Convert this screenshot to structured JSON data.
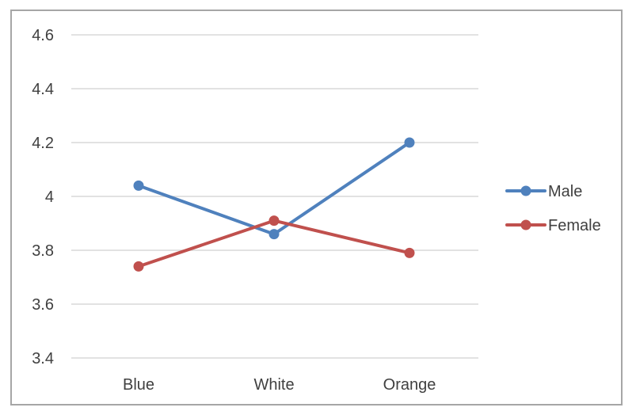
{
  "chart_data": {
    "type": "line",
    "title": "",
    "xlabel": "",
    "ylabel": "",
    "categories": [
      "Blue",
      "White",
      "Orange"
    ],
    "ylim": [
      3.4,
      4.6
    ],
    "yticks": [
      "3.4",
      "3.6",
      "3.8",
      "4",
      "4.2",
      "4.4",
      "4.6"
    ],
    "grid": true,
    "legend": "right",
    "series": [
      {
        "name": "Male",
        "values": [
          4.04,
          3.86,
          4.2
        ],
        "color": "#4f81bd"
      },
      {
        "name": "Female",
        "values": [
          3.74,
          3.91,
          3.79
        ],
        "color": "#c0504d"
      }
    ]
  }
}
